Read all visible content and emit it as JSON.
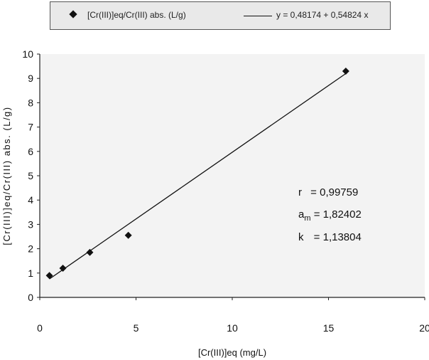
{
  "legend": {
    "series_label": "[Cr(III)]eq/Cr(III) abs. (L/g)",
    "fit_label": "y = 0,48174 + 0,54824 x"
  },
  "stats": {
    "r_label": "r",
    "r_value": "= 0,99759",
    "am_label": "a",
    "am_sub": "m",
    "am_value": "= 1,82402",
    "k_label": "k",
    "k_value": "= 1,13804"
  },
  "chart_data": {
    "type": "scatter",
    "xlabel": "[Cr(III)]eq (mg/L)",
    "ylabel": "[Cr(III)]eq/Cr(III) abs. (L/g)",
    "xlim": [
      0,
      20
    ],
    "ylim": [
      0,
      10
    ],
    "xticks": [
      "0",
      "5",
      "10",
      "15",
      "20"
    ],
    "yticks": [
      "0",
      "1",
      "2",
      "3",
      "4",
      "5",
      "6",
      "7",
      "8",
      "9",
      "10"
    ],
    "grid": false,
    "legend_position": "top",
    "series": [
      {
        "name": "[Cr(III)]eq/Cr(III) abs. (L/g)",
        "marker": "diamond",
        "color": "#111111",
        "x": [
          0.5,
          1.2,
          2.6,
          4.6,
          15.9
        ],
        "y": [
          0.9,
          1.2,
          1.85,
          2.55,
          9.3
        ]
      }
    ],
    "fit_line": {
      "name": "y = 0,48174 + 0,54824 x",
      "intercept": 0.48174,
      "slope": 0.54824,
      "x_range": [
        0.5,
        15.9
      ],
      "color": "#111111"
    }
  }
}
